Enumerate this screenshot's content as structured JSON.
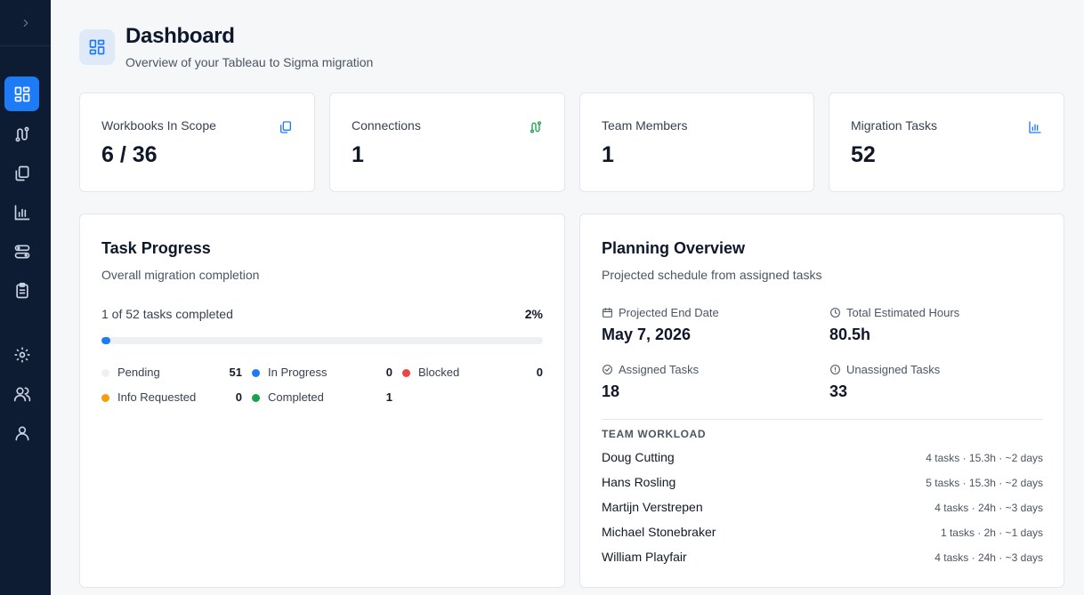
{
  "header": {
    "title": "Dashboard",
    "subtitle": "Overview of your Tableau to Sigma migration"
  },
  "sidebar": {
    "items": [
      {
        "icon": "dashboard-icon",
        "active": true
      },
      {
        "icon": "connections-icon",
        "active": false
      },
      {
        "icon": "workbooks-icon",
        "active": false
      },
      {
        "icon": "bar-chart-icon",
        "active": false
      },
      {
        "icon": "workflow-icon",
        "active": false
      },
      {
        "icon": "clipboard-icon",
        "active": false
      },
      {
        "icon": "gear-icon",
        "active": false
      },
      {
        "icon": "users-icon",
        "active": false
      },
      {
        "icon": "user-icon",
        "active": false
      }
    ]
  },
  "stats": [
    {
      "label": "Workbooks In Scope",
      "value": "6 / 36",
      "icon": "workbooks-icon",
      "icon_color": "#1d7bf5"
    },
    {
      "label": "Connections",
      "value": "1",
      "icon": "connections-icon",
      "icon_color": "#16a34a"
    },
    {
      "label": "Team Members",
      "value": "1",
      "icon": "",
      "icon_color": ""
    },
    {
      "label": "Migration Tasks",
      "value": "52",
      "icon": "bar-chart-icon",
      "icon_color": "#1d7bf5"
    }
  ],
  "task_progress": {
    "title": "Task Progress",
    "subtitle": "Overall migration completion",
    "summary": "1 of 52 tasks completed",
    "percent_label": "2%",
    "percent": 2,
    "legend": [
      {
        "name": "Pending",
        "count": "51",
        "color": "#eef0f4"
      },
      {
        "name": "In Progress",
        "count": "0",
        "color": "#1d7bf5"
      },
      {
        "name": "Blocked",
        "count": "0",
        "color": "#ef4444"
      },
      {
        "name": "Info Requested",
        "count": "0",
        "color": "#f59e0b"
      },
      {
        "name": "Completed",
        "count": "1",
        "color": "#16a34a"
      }
    ]
  },
  "planning": {
    "title": "Planning Overview",
    "subtitle": "Projected schedule from assigned tasks",
    "metrics": [
      {
        "label": "Projected End Date",
        "value": "May 7, 2026",
        "icon": "calendar-icon"
      },
      {
        "label": "Total Estimated Hours",
        "value": "80.5h",
        "icon": "clock-icon"
      },
      {
        "label": "Assigned Tasks",
        "value": "18",
        "icon": "check-circle-icon"
      },
      {
        "label": "Unassigned Tasks",
        "value": "33",
        "icon": "alert-circle-icon"
      }
    ],
    "workload_heading": "TEAM WORKLOAD",
    "workload": [
      {
        "name": "Doug Cutting",
        "stats": "4 tasks · 15.3h · ~2 days"
      },
      {
        "name": "Hans Rosling",
        "stats": "5 tasks · 15.3h · ~2 days"
      },
      {
        "name": "Martijn Verstrepen",
        "stats": "4 tasks · 24h · ~3 days"
      },
      {
        "name": "Michael Stonebraker",
        "stats": "1 tasks · 2h · ~1 days"
      },
      {
        "name": "William Playfair",
        "stats": "4 tasks · 24h · ~3 days"
      }
    ]
  }
}
